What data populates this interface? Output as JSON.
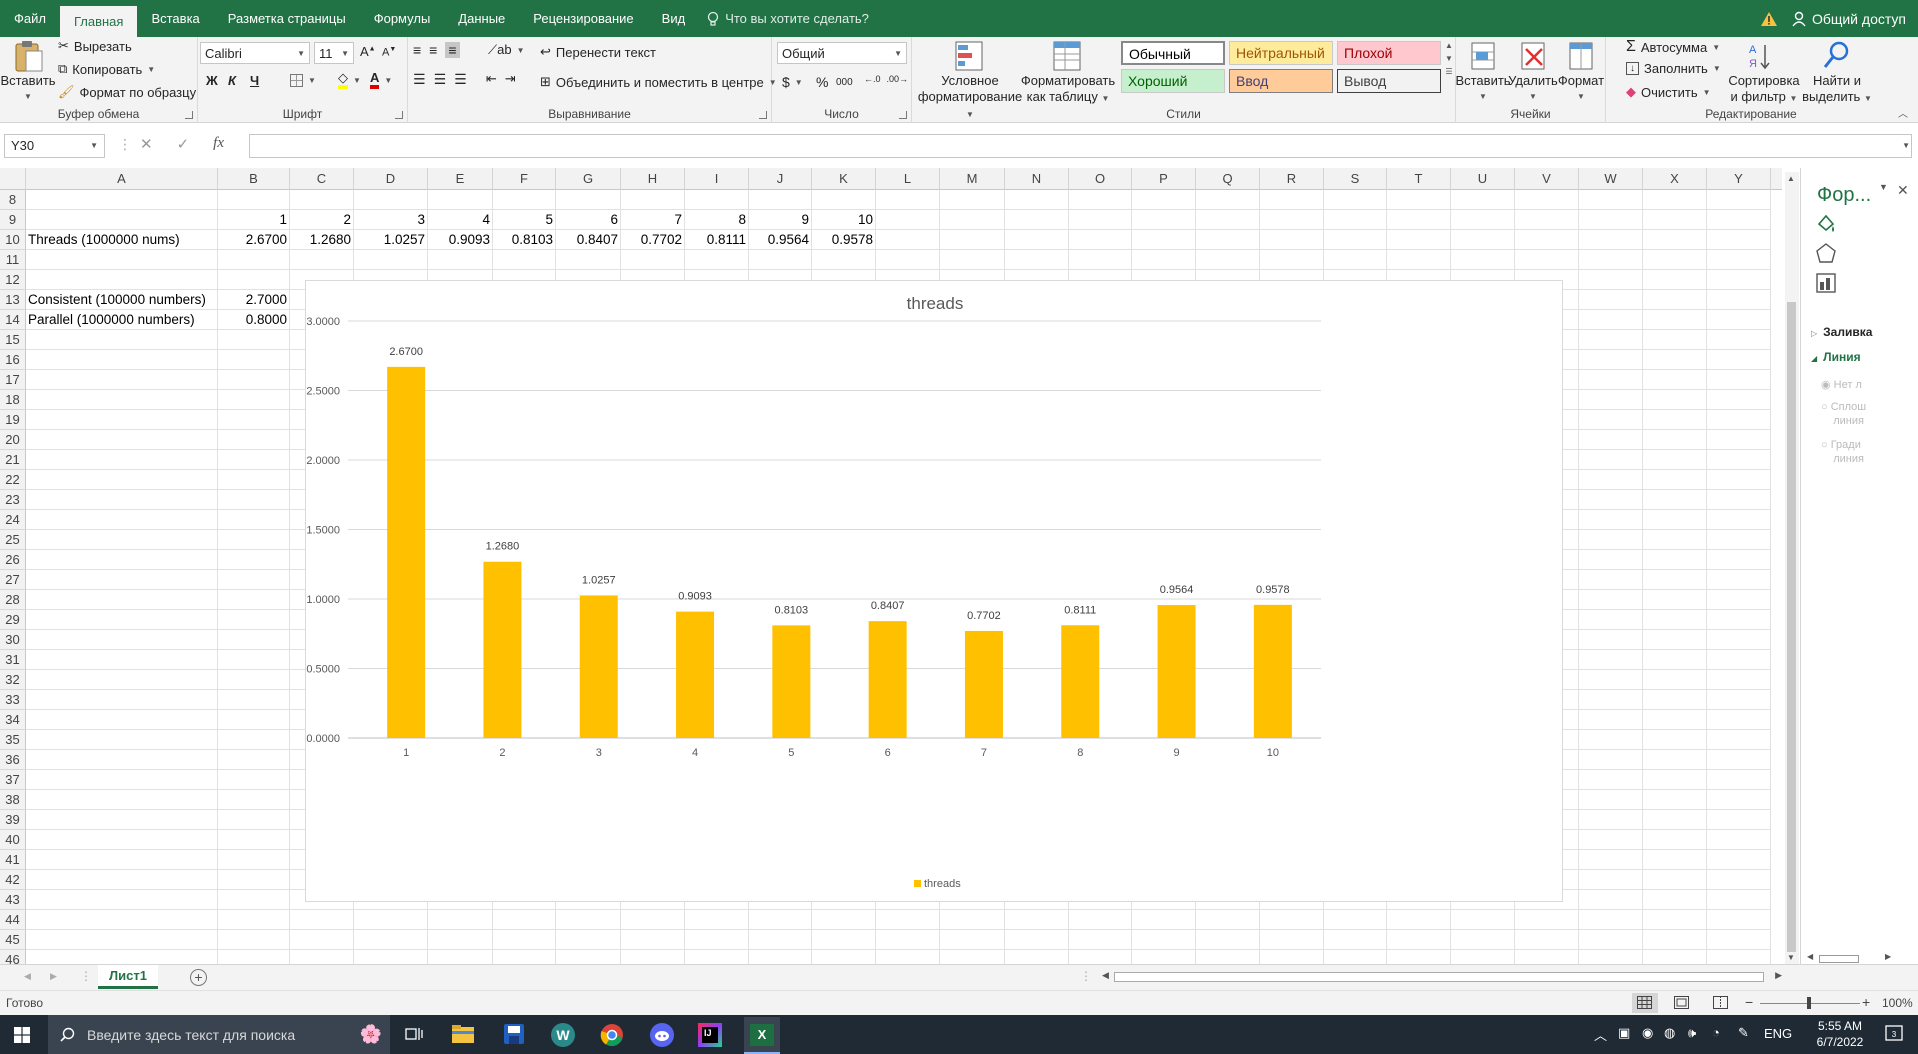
{
  "tabs": {
    "file": "Файл",
    "home": "Главная",
    "insert": "Вставка",
    "layout": "Разметка страницы",
    "formulas": "Формулы",
    "data": "Данные",
    "review": "Рецензирование",
    "view": "Вид",
    "tellme": "Что вы хотите сделать?",
    "share": "Общий доступ"
  },
  "ribbon": {
    "clipboard": {
      "label": "Буфер обмена",
      "paste": "Вставить",
      "cut": "Вырезать",
      "copy": "Копировать",
      "format_painter": "Формат по образцу"
    },
    "font": {
      "label": "Шрифт",
      "name": "Calibri",
      "size": "11",
      "bold": "Ж",
      "italic": "К",
      "underline": "Ч"
    },
    "alignment": {
      "label": "Выравнивание",
      "wrap": "Перенести текст",
      "merge": "Объединить и поместить в центре"
    },
    "number": {
      "label": "Число",
      "format": "Общий",
      "currency": "$",
      "percent": "%",
      "thousands": "000"
    },
    "styles": {
      "label": "Стили",
      "conditional_1": "Условное",
      "conditional_2": "форматирование",
      "table_1": "Форматировать",
      "table_2": "как таблицу",
      "normal": "Обычный",
      "neutral": "Нейтральный",
      "bad": "Плохой",
      "good": "Хороший",
      "input": "Ввод",
      "output": "Вывод"
    },
    "cells": {
      "label": "Ячейки",
      "insert": "Вставить",
      "delete": "Удалить",
      "format": "Формат"
    },
    "editing": {
      "label": "Редактирование",
      "autosum": "Автосумма",
      "fill": "Заполнить",
      "clear": "Очистить",
      "sort_1": "Сортировка",
      "sort_2": "и фильтр",
      "find_1": "Найти и",
      "find_2": "выделить"
    }
  },
  "formula_bar": {
    "name_box": "Y30",
    "formula": "",
    "fx": "fx"
  },
  "columns": [
    "A",
    "B",
    "C",
    "D",
    "E",
    "F",
    "G",
    "H",
    "I",
    "J",
    "K",
    "L",
    "M",
    "N",
    "O",
    "P",
    "Q",
    "R",
    "S",
    "T",
    "U",
    "V",
    "W",
    "X",
    "Y"
  ],
  "rows": [
    "8",
    "9",
    "10",
    "11",
    "12",
    "13",
    "14",
    "15",
    "16",
    "17",
    "18",
    "19",
    "20",
    "21",
    "22",
    "23",
    "24",
    "25",
    "26",
    "27",
    "28",
    "29",
    "30",
    "31",
    "32",
    "33",
    "34",
    "35",
    "36",
    "37",
    "38",
    "39",
    "40",
    "41",
    "42",
    "43",
    "44",
    "45",
    "46"
  ],
  "cells": {
    "row9": [
      "1",
      "2",
      "3",
      "4",
      "5",
      "6",
      "7",
      "8",
      "9",
      "10"
    ],
    "a10": "Threads (1000000 nums)",
    "row10": [
      "2.6700",
      "1.2680",
      "1.0257",
      "0.9093",
      "0.8103",
      "0.8407",
      "0.7702",
      "0.8111",
      "0.9564",
      "0.9578"
    ],
    "a13": "Consistent (100000 numbers)",
    "b13": "2.7000",
    "a14": "Parallel (1000000 numbers)",
    "b14": "0.8000"
  },
  "chart_data": {
    "type": "bar",
    "title": "threads",
    "categories": [
      "1",
      "2",
      "3",
      "4",
      "5",
      "6",
      "7",
      "8",
      "9",
      "10"
    ],
    "series": [
      {
        "name": "threads",
        "values": [
          2.67,
          1.268,
          1.0257,
          0.9093,
          0.8103,
          0.8407,
          0.7702,
          0.8111,
          0.9564,
          0.9578
        ]
      }
    ],
    "data_labels": [
      "2.6700",
      "1.2680",
      "1.0257",
      "0.9093",
      "0.8103",
      "0.8407",
      "0.7702",
      "0.8111",
      "0.9564",
      "0.9578"
    ],
    "y_ticks": [
      "0.0000",
      "0.5000",
      "1.0000",
      "1.5000",
      "2.0000",
      "2.5000",
      "3.0000"
    ],
    "ylim": [
      0,
      3
    ],
    "grid": true,
    "legend": "bottom",
    "color": "#ffc000"
  },
  "pane": {
    "title": "Фор...",
    "fill": "Заливка",
    "line": "Линия",
    "opt1": "Нет л",
    "opt2a": "Сплош",
    "opt2b": "линия",
    "opt3a": "Гради",
    "opt3b": "линия"
  },
  "sheet": {
    "name": "Лист1",
    "status": "Готово",
    "zoom": "100%"
  },
  "taskbar": {
    "search": "Введите здесь текст для поиска",
    "lang": "ENG",
    "time": "5:55 AM",
    "date": "6/7/2022"
  },
  "colors": {
    "excel_green": "#217346",
    "bar": "#ffc000"
  }
}
